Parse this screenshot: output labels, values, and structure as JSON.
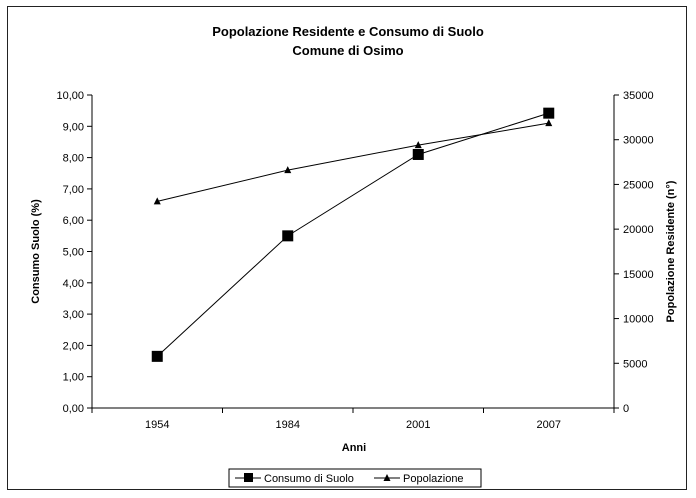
{
  "chart_data": {
    "type": "line",
    "title": "Popolazione Residente e Consumo di Suolo",
    "subtitle": "Comune di Osimo",
    "xlabel": "Anni",
    "ylabel_left": "Consumo Suolo (%)",
    "ylabel_right": "Popolazione Residente (n°)",
    "categories": [
      "1954",
      "1984",
      "2001",
      "2007"
    ],
    "ylim_left": [
      0,
      10
    ],
    "ylim_right": [
      0,
      35000
    ],
    "yticks_left": [
      "0,00",
      "1,00",
      "2,00",
      "3,00",
      "4,00",
      "5,00",
      "6,00",
      "7,00",
      "8,00",
      "9,00",
      "10,00"
    ],
    "yticks_right": [
      "0",
      "5000",
      "10000",
      "15000",
      "20000",
      "25000",
      "30000",
      "35000"
    ],
    "grid": false,
    "legend_position": "bottom",
    "series": [
      {
        "name": "Consumo di Suolo",
        "axis": "left",
        "marker": "square",
        "values": [
          1.65,
          5.5,
          8.1,
          9.42
        ]
      },
      {
        "name": "Popolazione",
        "axis": "right",
        "marker": "triangle",
        "values": [
          23100,
          26600,
          29400,
          31850
        ]
      }
    ],
    "colors": {
      "line": "#000000",
      "frame": "#222222"
    }
  }
}
